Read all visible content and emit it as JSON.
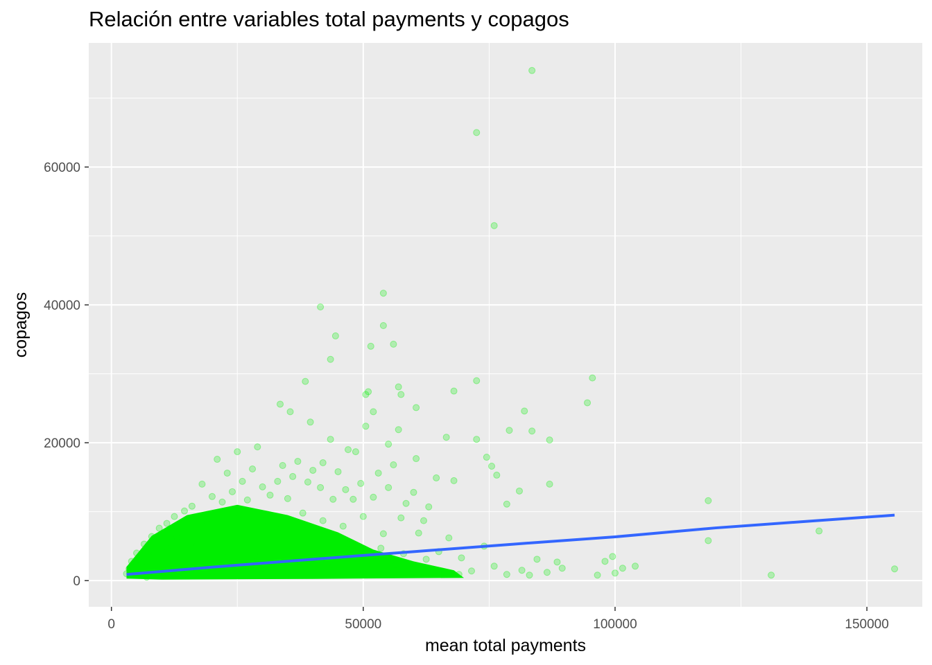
{
  "chart_data": {
    "type": "scatter",
    "title": "Relación entre variables total payments y copagos",
    "xlabel": "mean total payments",
    "ylabel": "copagos",
    "xlim": [
      -4500,
      161000
    ],
    "ylim": [
      -3800,
      78000
    ],
    "x_ticks": [
      0,
      50000,
      100000,
      150000
    ],
    "x_tick_labels": [
      "0",
      "50000",
      "100000",
      "150000"
    ],
    "y_ticks": [
      0,
      20000,
      40000,
      60000
    ],
    "y_tick_labels": [
      "0",
      "20000",
      "40000",
      "60000"
    ],
    "grid": true,
    "legend": "none",
    "colors": {
      "panel_background": "#ebebeb",
      "grid": "#ffffff",
      "points": "#00ee00",
      "trend_line": "#3366ff"
    },
    "point_alpha": 0.25,
    "series": [
      {
        "values": [
          [
            83500,
            74000
          ],
          [
            72500,
            65000
          ],
          [
            76000,
            51500
          ],
          [
            41500,
            39700
          ],
          [
            54000,
            41700
          ],
          [
            44500,
            35500
          ],
          [
            54000,
            37000
          ],
          [
            56000,
            34300
          ],
          [
            43500,
            32100
          ],
          [
            51500,
            34000
          ],
          [
            38500,
            28900
          ],
          [
            95500,
            29400
          ],
          [
            72500,
            29000
          ],
          [
            94500,
            25800
          ],
          [
            57000,
            28100
          ],
          [
            50500,
            27000
          ],
          [
            68000,
            27500
          ],
          [
            51000,
            27400
          ],
          [
            57500,
            27000
          ],
          [
            35500,
            24500
          ],
          [
            33500,
            25600
          ],
          [
            52000,
            24500
          ],
          [
            60500,
            25100
          ],
          [
            50500,
            22400
          ],
          [
            57000,
            21900
          ],
          [
            39500,
            23000
          ],
          [
            82000,
            24600
          ],
          [
            79000,
            21800
          ],
          [
            83500,
            21700
          ],
          [
            87000,
            20400
          ],
          [
            66500,
            20800
          ],
          [
            72500,
            20500
          ],
          [
            43500,
            20500
          ],
          [
            47000,
            19000
          ],
          [
            48500,
            18700
          ],
          [
            55000,
            19800
          ],
          [
            60500,
            17700
          ],
          [
            74500,
            17900
          ],
          [
            75500,
            16600
          ],
          [
            76500,
            15300
          ],
          [
            64500,
            14900
          ],
          [
            68000,
            14500
          ],
          [
            87000,
            14000
          ],
          [
            81000,
            13000
          ],
          [
            78500,
            11100
          ],
          [
            118500,
            11600
          ],
          [
            140500,
            7200
          ],
          [
            118500,
            5800
          ],
          [
            155500,
            1700
          ],
          [
            131000,
            800
          ],
          [
            104000,
            2100
          ],
          [
            101500,
            1800
          ],
          [
            99500,
            3500
          ],
          [
            98000,
            2800
          ],
          [
            100000,
            1100
          ],
          [
            96500,
            800
          ],
          [
            89500,
            1800
          ],
          [
            88500,
            2700
          ],
          [
            86500,
            1200
          ],
          [
            84500,
            3100
          ],
          [
            83000,
            800
          ],
          [
            81500,
            1500
          ],
          [
            78500,
            900
          ],
          [
            76000,
            2100
          ],
          [
            74000,
            5000
          ],
          [
            71500,
            1400
          ],
          [
            69500,
            3300
          ],
          [
            69000,
            900
          ],
          [
            67000,
            6200
          ],
          [
            65000,
            4200
          ],
          [
            63000,
            10700
          ],
          [
            62000,
            8700
          ],
          [
            61000,
            6900
          ],
          [
            60000,
            12800
          ],
          [
            58500,
            11200
          ],
          [
            57500,
            9100
          ],
          [
            56000,
            16800
          ],
          [
            55000,
            13500
          ],
          [
            54000,
            6800
          ],
          [
            53000,
            15600
          ],
          [
            52000,
            12100
          ],
          [
            49500,
            14100
          ],
          [
            48000,
            11800
          ],
          [
            46500,
            13200
          ],
          [
            45000,
            15800
          ],
          [
            44000,
            11800
          ],
          [
            42000,
            17100
          ],
          [
            41500,
            13500
          ],
          [
            40000,
            16000
          ],
          [
            39000,
            14300
          ],
          [
            37000,
            17300
          ],
          [
            36000,
            15100
          ],
          [
            35000,
            11900
          ],
          [
            34000,
            16700
          ],
          [
            33000,
            14400
          ],
          [
            31500,
            12400
          ],
          [
            30000,
            13600
          ],
          [
            29000,
            19400
          ],
          [
            28000,
            16200
          ],
          [
            27000,
            11700
          ],
          [
            26000,
            14400
          ],
          [
            25000,
            18700
          ],
          [
            24000,
            12900
          ],
          [
            23000,
            15600
          ],
          [
            22000,
            11400
          ],
          [
            21000,
            17600
          ],
          [
            20000,
            12200
          ],
          [
            18000,
            14000
          ],
          [
            16000,
            10800
          ],
          [
            14500,
            10100
          ],
          [
            12500,
            9300
          ],
          [
            11000,
            8300
          ],
          [
            9500,
            7600
          ],
          [
            8000,
            6400
          ],
          [
            6500,
            5300
          ],
          [
            5000,
            4000
          ],
          [
            4000,
            2800
          ],
          [
            3500,
            1700
          ],
          [
            3000,
            1000
          ],
          [
            7000,
            500
          ],
          [
            10000,
            700
          ],
          [
            15000,
            900
          ],
          [
            20000,
            1200
          ],
          [
            25000,
            1100
          ],
          [
            30000,
            900
          ],
          [
            35000,
            1000
          ],
          [
            40000,
            1100
          ],
          [
            45000,
            1200
          ],
          [
            50000,
            1000
          ],
          [
            55000,
            1100
          ],
          [
            60000,
            1200
          ],
          [
            65000,
            1000
          ],
          [
            38000,
            9800
          ],
          [
            42000,
            8700
          ],
          [
            46000,
            7900
          ],
          [
            50000,
            9300
          ],
          [
            30500,
            8800
          ],
          [
            25500,
            9600
          ],
          [
            19000,
            8400
          ],
          [
            33000,
            7400
          ],
          [
            47000,
            5400
          ],
          [
            53500,
            4700
          ],
          [
            58000,
            3900
          ],
          [
            62500,
            3100
          ],
          [
            36500,
            4500
          ],
          [
            28500,
            3600
          ],
          [
            22500,
            4200
          ],
          [
            17000,
            5200
          ],
          [
            13000,
            6300
          ],
          [
            11000,
            4700
          ],
          [
            8500,
            3900
          ],
          [
            6000,
            2600
          ],
          [
            44000,
            2200
          ],
          [
            49000,
            2700
          ],
          [
            56500,
            2300
          ]
        ]
      }
    ],
    "trend_line": {
      "x": [
        3000,
        20000,
        40000,
        60000,
        80000,
        100000,
        120000,
        140000,
        155500
      ],
      "y": [
        900,
        1950,
        3100,
        4200,
        5300,
        6350,
        7650,
        8700,
        9500
      ]
    }
  }
}
